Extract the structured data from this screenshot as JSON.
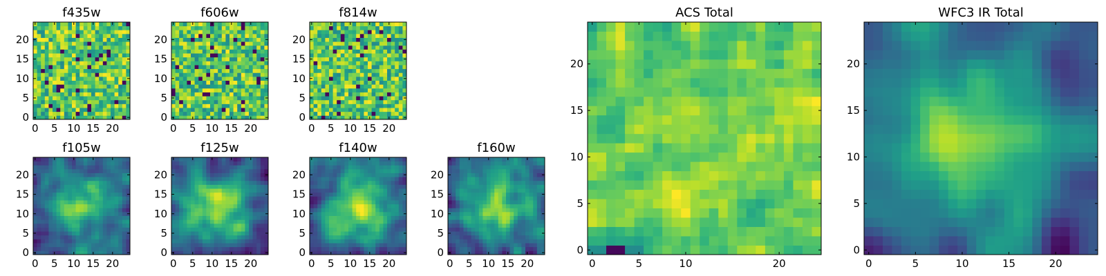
{
  "chart_data": [
    {
      "id": "f435w",
      "type": "heatmap",
      "title": "f435w",
      "seed": 11,
      "style": "noise",
      "xlim": [
        0,
        24
      ],
      "ylim": [
        0,
        24
      ],
      "xticks": [
        0,
        5,
        10,
        15,
        20
      ],
      "yticks": [
        0,
        5,
        10,
        15,
        20
      ],
      "colormap": "viridis"
    },
    {
      "id": "f606w",
      "type": "heatmap",
      "title": "f606w",
      "seed": 23,
      "style": "noise",
      "xlim": [
        0,
        24
      ],
      "ylim": [
        0,
        24
      ],
      "xticks": [
        0,
        5,
        10,
        15,
        20
      ],
      "yticks": [
        0,
        5,
        10,
        15,
        20
      ],
      "colormap": "viridis"
    },
    {
      "id": "f814w",
      "type": "heatmap",
      "title": "f814w",
      "seed": 37,
      "style": "noise",
      "xlim": [
        0,
        24
      ],
      "ylim": [
        0,
        24
      ],
      "xticks": [
        0,
        5,
        10,
        15,
        20
      ],
      "yticks": [
        0,
        5,
        10,
        15,
        20
      ],
      "colormap": "viridis"
    },
    {
      "id": "f105w",
      "type": "heatmap",
      "title": "f105w",
      "seed": 41,
      "style": "smooth",
      "xlim": [
        0,
        24
      ],
      "ylim": [
        0,
        24
      ],
      "xticks": [
        0,
        5,
        10,
        15,
        20
      ],
      "yticks": [
        0,
        5,
        10,
        15,
        20
      ],
      "colormap": "viridis"
    },
    {
      "id": "f125w",
      "type": "heatmap",
      "title": "f125w",
      "seed": 53,
      "style": "smooth",
      "xlim": [
        0,
        24
      ],
      "ylim": [
        0,
        24
      ],
      "xticks": [
        0,
        5,
        10,
        15,
        20
      ],
      "yticks": [
        0,
        5,
        10,
        15,
        20
      ],
      "colormap": "viridis"
    },
    {
      "id": "f140w",
      "type": "heatmap",
      "title": "f140w",
      "seed": 67,
      "style": "smooth",
      "xlim": [
        0,
        24
      ],
      "ylim": [
        0,
        24
      ],
      "xticks": [
        0,
        5,
        10,
        15,
        20
      ],
      "yticks": [
        0,
        5,
        10,
        15,
        20
      ],
      "colormap": "viridis"
    },
    {
      "id": "f160w",
      "type": "heatmap",
      "title": "f160w",
      "seed": 79,
      "style": "smooth",
      "xlim": [
        0,
        24
      ],
      "ylim": [
        0,
        24
      ],
      "xticks": [
        0,
        5,
        10,
        15,
        20
      ],
      "yticks": [
        0,
        5,
        10,
        15,
        20
      ],
      "colormap": "viridis"
    },
    {
      "id": "acs-total",
      "type": "heatmap",
      "title": "ACS Total",
      "seed": 97,
      "style": "mixed",
      "xlim": [
        0,
        24
      ],
      "ylim": [
        0,
        24
      ],
      "xticks": [
        0,
        10,
        20
      ],
      "xticks_minor": [
        5
      ],
      "yticks": [
        0,
        5,
        10,
        15,
        20
      ],
      "colormap": "viridis"
    },
    {
      "id": "wfc3-ir-total",
      "type": "heatmap",
      "title": "WFC3 IR Total",
      "seed": 131,
      "style": "blob",
      "xlim": [
        0,
        24
      ],
      "ylim": [
        0,
        24
      ],
      "xticks": [
        0,
        5,
        10,
        15,
        20
      ],
      "yticks": [
        0,
        5,
        10,
        15,
        20
      ],
      "colormap": "viridis"
    }
  ]
}
